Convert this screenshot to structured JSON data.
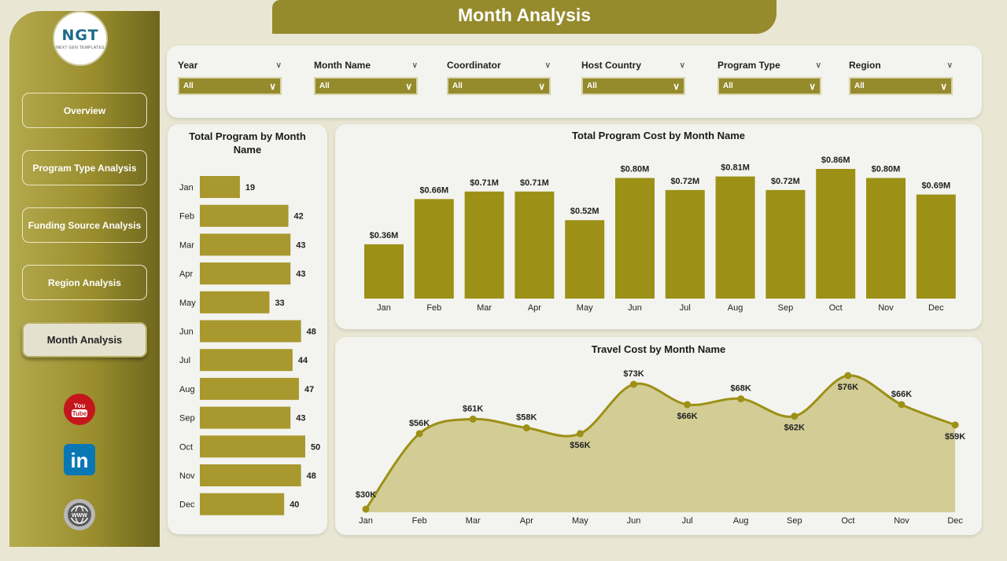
{
  "header": {
    "title": "Month Analysis"
  },
  "logo": {
    "text": "NGT",
    "subtext": "NEXT GEN TEMPLATES"
  },
  "nav": [
    {
      "label": "Overview"
    },
    {
      "label": "Program Type Analysis"
    },
    {
      "label": "Funding Source Analysis"
    },
    {
      "label": "Region Analysis"
    },
    {
      "label": "Month Analysis"
    }
  ],
  "social": {
    "youtube": "You Tube",
    "linkedin": "in",
    "web": "WWW"
  },
  "filters": [
    {
      "label": "Year",
      "value": "All"
    },
    {
      "label": "Month Name",
      "value": "All"
    },
    {
      "label": "Coordinator",
      "value": "All"
    },
    {
      "label": "Host Country",
      "value": "All"
    },
    {
      "label": "Program Type",
      "value": "All"
    },
    {
      "label": "Region",
      "value": "All"
    }
  ],
  "colors": {
    "accent": "#958a2c",
    "bar": "#9c9016",
    "bar_h": "#a8982e",
    "area": "#d3cd95"
  },
  "chart_data": [
    {
      "type": "bar",
      "orientation": "horizontal",
      "title": "Total Program by Month Name",
      "categories": [
        "Jan",
        "Feb",
        "Mar",
        "Apr",
        "May",
        "Jun",
        "Jul",
        "Aug",
        "Sep",
        "Oct",
        "Nov",
        "Dec"
      ],
      "values": [
        19,
        42,
        43,
        43,
        33,
        48,
        44,
        47,
        43,
        50,
        48,
        40
      ]
    },
    {
      "type": "bar",
      "title": "Total Program Cost by Month Name",
      "categories": [
        "Jan",
        "Feb",
        "Mar",
        "Apr",
        "May",
        "Jun",
        "Jul",
        "Aug",
        "Sep",
        "Oct",
        "Nov",
        "Dec"
      ],
      "values": [
        0.36,
        0.66,
        0.71,
        0.71,
        0.52,
        0.8,
        0.72,
        0.81,
        0.72,
        0.86,
        0.8,
        0.69
      ],
      "labels": [
        "$0.36M",
        "$0.66M",
        "$0.71M",
        "$0.71M",
        "$0.52M",
        "$0.80M",
        "$0.72M",
        "$0.81M",
        "$0.72M",
        "$0.86M",
        "$0.80M",
        "$0.69M"
      ]
    },
    {
      "type": "area",
      "title": "Travel Cost by Month Name",
      "categories": [
        "Jan",
        "Feb",
        "Mar",
        "Apr",
        "May",
        "Jun",
        "Jul",
        "Aug",
        "Sep",
        "Oct",
        "Nov",
        "Dec"
      ],
      "values": [
        30,
        56,
        61,
        58,
        56,
        73,
        66,
        68,
        62,
        76,
        66,
        59
      ],
      "labels": [
        "$30K",
        "$56K",
        "$61K",
        "$58K",
        "$56K",
        "$73K",
        "$66K",
        "$68K",
        "$62K",
        "$76K",
        "$66K",
        "$59K"
      ]
    }
  ]
}
